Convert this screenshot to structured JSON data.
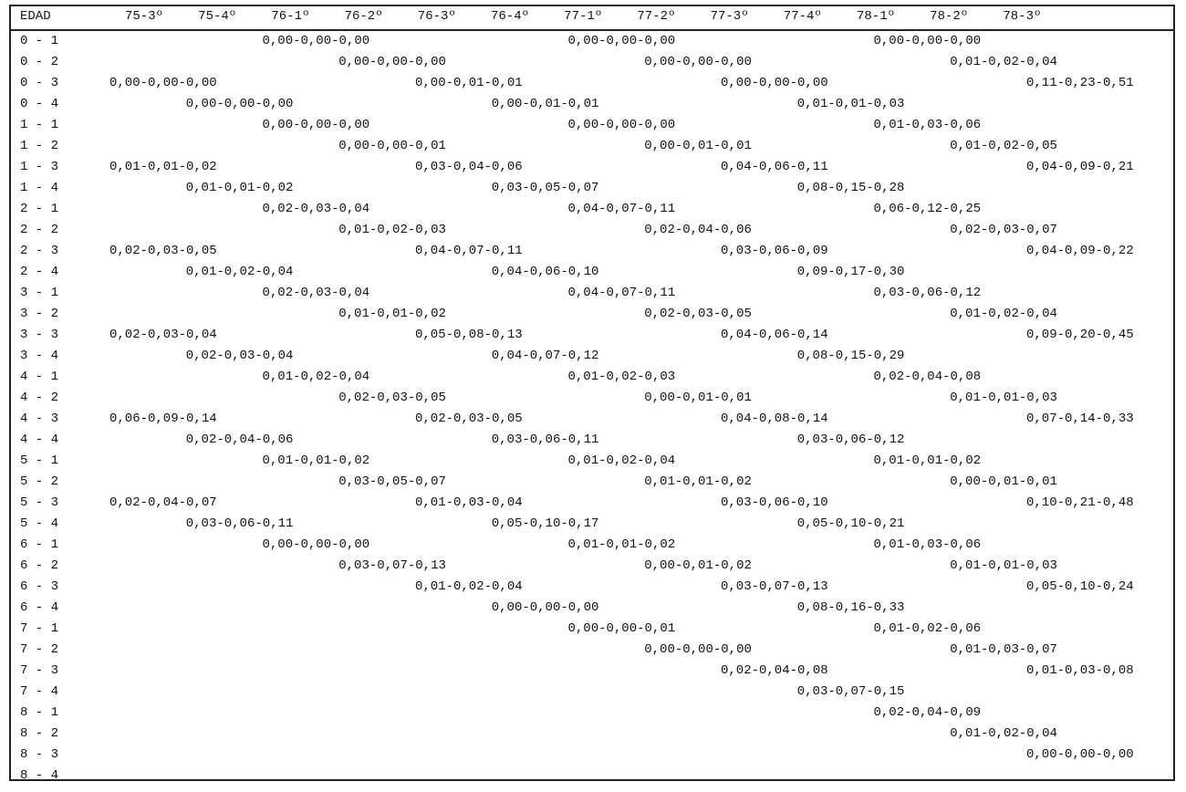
{
  "table": {
    "header": [
      "EDAD",
      "75-3º",
      "75-4º",
      "76-1º",
      "76-2º",
      "76-3º",
      "76-4º",
      "77-1º",
      "77-2º",
      "77-3º",
      "77-4º",
      "78-1º",
      "78-2º",
      "78-3º"
    ],
    "rows": [
      [
        "0 - 1",
        null,
        null,
        "0,00-0,00-0,00",
        null,
        null,
        null,
        "0,00-0,00-0,00",
        null,
        null,
        null,
        "0,00-0,00-0,00",
        null,
        null
      ],
      [
        "0 - 2",
        null,
        null,
        null,
        "0,00-0,00-0,00",
        null,
        null,
        null,
        "0,00-0,00-0,00",
        null,
        null,
        null,
        "0,01-0,02-0,04",
        null
      ],
      [
        "0 - 3",
        "0,00-0,00-0,00",
        null,
        null,
        null,
        "0,00-0,01-0,01",
        null,
        null,
        null,
        "0,00-0,00-0,00",
        null,
        null,
        null,
        "0,11-0,23-0,51"
      ],
      [
        "0 - 4",
        null,
        "0,00-0,00-0,00",
        null,
        null,
        null,
        "0,00-0,01-0,01",
        null,
        null,
        null,
        "0,01-0,01-0,03",
        null,
        null,
        null
      ],
      [
        "1 - 1",
        null,
        null,
        "0,00-0,00-0,00",
        null,
        null,
        null,
        "0,00-0,00-0,00",
        null,
        null,
        null,
        "0,01-0,03-0,06",
        null,
        null
      ],
      [
        "1 - 2",
        null,
        null,
        null,
        "0,00-0,00-0,01",
        null,
        null,
        null,
        "0,00-0,01-0,01",
        null,
        null,
        null,
        "0,01-0,02-0,05",
        null
      ],
      [
        "1 - 3",
        "0,01-0,01-0,02",
        null,
        null,
        null,
        "0,03-0,04-0,06",
        null,
        null,
        null,
        "0,04-0,06-0,11",
        null,
        null,
        null,
        "0,04-0,09-0,21"
      ],
      [
        "1 - 4",
        null,
        "0,01-0,01-0,02",
        null,
        null,
        null,
        "0,03-0,05-0,07",
        null,
        null,
        null,
        "0,08-0,15-0,28",
        null,
        null,
        null
      ],
      [
        "2 - 1",
        null,
        null,
        "0,02-0,03-0,04",
        null,
        null,
        null,
        "0,04-0,07-0,11",
        null,
        null,
        null,
        "0,06-0,12-0,25",
        null,
        null
      ],
      [
        "2 - 2",
        null,
        null,
        null,
        "0,01-0,02-0,03",
        null,
        null,
        null,
        "0,02-0,04-0,06",
        null,
        null,
        null,
        "0,02-0,03-0,07",
        null
      ],
      [
        "2 - 3",
        "0,02-0,03-0,05",
        null,
        null,
        null,
        "0,04-0,07-0,11",
        null,
        null,
        null,
        "0,03-0,06-0,09",
        null,
        null,
        null,
        "0,04-0,09-0,22"
      ],
      [
        "2 - 4",
        null,
        "0,01-0,02-0,04",
        null,
        null,
        null,
        "0,04-0,06-0,10",
        null,
        null,
        null,
        "0,09-0,17-0,30",
        null,
        null,
        null
      ],
      [
        "3 - 1",
        null,
        null,
        "0,02-0,03-0,04",
        null,
        null,
        null,
        "0,04-0,07-0,11",
        null,
        null,
        null,
        "0,03-0,06-0,12",
        null,
        null
      ],
      [
        "3 - 2",
        null,
        null,
        null,
        "0,01-0,01-0,02",
        null,
        null,
        null,
        "0,02-0,03-0,05",
        null,
        null,
        null,
        "0,01-0,02-0,04",
        null
      ],
      [
        "3 - 3",
        "0,02-0,03-0,04",
        null,
        null,
        null,
        "0,05-0,08-0,13",
        null,
        null,
        null,
        "0,04-0,06-0,14",
        null,
        null,
        null,
        "0,09-0,20-0,45"
      ],
      [
        "3 - 4",
        null,
        "0,02-0,03-0,04",
        null,
        null,
        null,
        "0,04-0,07-0,12",
        null,
        null,
        null,
        "0,08-0,15-0,29",
        null,
        null,
        null
      ],
      [
        "4 - 1",
        null,
        null,
        "0,01-0,02-0,04",
        null,
        null,
        null,
        "0,01-0,02-0,03",
        null,
        null,
        null,
        "0,02-0,04-0,08",
        null,
        null
      ],
      [
        "4 - 2",
        null,
        null,
        null,
        "0,02-0,03-0,05",
        null,
        null,
        null,
        "0,00-0,01-0,01",
        null,
        null,
        null,
        "0,01-0,01-0,03",
        null
      ],
      [
        "4 - 3",
        "0,06-0,09-0,14",
        null,
        null,
        null,
        "0,02-0,03-0,05",
        null,
        null,
        null,
        "0,04-0,08-0,14",
        null,
        null,
        null,
        "0,07-0,14-0,33"
      ],
      [
        "4 - 4",
        null,
        "0,02-0,04-0,06",
        null,
        null,
        null,
        "0,03-0,06-0,11",
        null,
        null,
        null,
        "0,03-0,06-0,12",
        null,
        null,
        null
      ],
      [
        "5 - 1",
        null,
        null,
        "0,01-0,01-0,02",
        null,
        null,
        null,
        "0,01-0,02-0,04",
        null,
        null,
        null,
        "0,01-0,01-0,02",
        null,
        null
      ],
      [
        "5 - 2",
        null,
        null,
        null,
        "0,03-0,05-0,07",
        null,
        null,
        null,
        "0,01-0,01-0,02",
        null,
        null,
        null,
        "0,00-0,01-0,01",
        null
      ],
      [
        "5 - 3",
        "0,02-0,04-0,07",
        null,
        null,
        null,
        "0,01-0,03-0,04",
        null,
        null,
        null,
        "0,03-0,06-0,10",
        null,
        null,
        null,
        "0,10-0,21-0,48"
      ],
      [
        "5 - 4",
        null,
        "0,03-0,06-0,11",
        null,
        null,
        null,
        "0,05-0,10-0,17",
        null,
        null,
        null,
        "0,05-0,10-0,21",
        null,
        null,
        null
      ],
      [
        "6 - 1",
        null,
        null,
        "0,00-0,00-0,00",
        null,
        null,
        null,
        "0,01-0,01-0,02",
        null,
        null,
        null,
        "0,01-0,03-0,06",
        null,
        null
      ],
      [
        "6 - 2",
        null,
        null,
        null,
        "0,03-0,07-0,13",
        null,
        null,
        null,
        "0,00-0,01-0,02",
        null,
        null,
        null,
        "0,01-0,01-0,03",
        null
      ],
      [
        "6 - 3",
        null,
        null,
        null,
        null,
        "0,01-0,02-0,04",
        null,
        null,
        null,
        "0,03-0,07-0,13",
        null,
        null,
        null,
        "0,05-0,10-0,24"
      ],
      [
        "6 - 4",
        null,
        null,
        null,
        null,
        null,
        "0,00-0,00-0,00",
        null,
        null,
        null,
        "0,08-0,16-0,33",
        null,
        null,
        null
      ],
      [
        "7 - 1",
        null,
        null,
        null,
        null,
        null,
        null,
        "0,00-0,00-0,01",
        null,
        null,
        null,
        "0,01-0,02-0,06",
        null,
        null
      ],
      [
        "7 - 2",
        null,
        null,
        null,
        null,
        null,
        null,
        null,
        "0,00-0,00-0,00",
        null,
        null,
        null,
        "0,01-0,03-0,07",
        null
      ],
      [
        "7 - 3",
        null,
        null,
        null,
        null,
        null,
        null,
        null,
        null,
        "0,02-0,04-0,08",
        null,
        null,
        null,
        "0,01-0,03-0,08"
      ],
      [
        "7 - 4",
        null,
        null,
        null,
        null,
        null,
        null,
        null,
        null,
        null,
        "0,03-0,07-0,15",
        null,
        null,
        null
      ],
      [
        "8 - 1",
        null,
        null,
        null,
        null,
        null,
        null,
        null,
        null,
        null,
        null,
        "0,02-0,04-0,09",
        null,
        null
      ],
      [
        "8 - 2",
        null,
        null,
        null,
        null,
        null,
        null,
        null,
        null,
        null,
        null,
        null,
        "0,01-0,02-0,04",
        null
      ],
      [
        "8 - 3",
        null,
        null,
        null,
        null,
        null,
        null,
        null,
        null,
        null,
        null,
        null,
        null,
        "0,00-0,00-0,00"
      ],
      [
        "8 - 4",
        null,
        null,
        null,
        null,
        null,
        null,
        null,
        null,
        null,
        null,
        null,
        null,
        null
      ]
    ]
  }
}
